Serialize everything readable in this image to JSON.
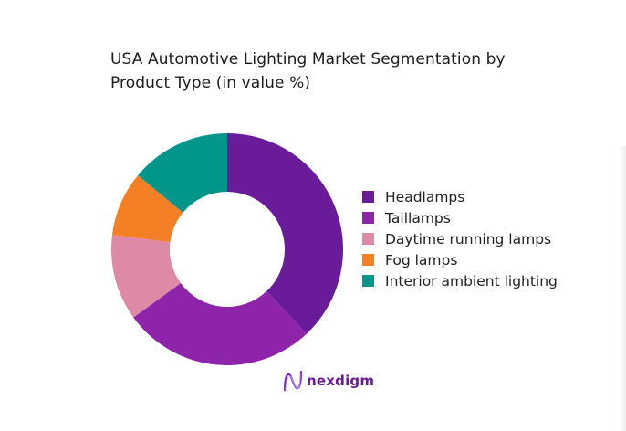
{
  "title": "USA Automotive Lighting Market Segmentation by Product Type (in value %)",
  "chart_data": {
    "type": "pie",
    "variant": "donut",
    "title": "USA Automotive Lighting Market Segmentation by Product Type (in value %)",
    "categories": [
      "Headlamps",
      "Taillamps",
      "Daytime running lamps",
      "Fog lamps",
      "Interior ambient lighting"
    ],
    "values": [
      38,
      27,
      12,
      9,
      14
    ],
    "colors": [
      "#6a1b9a",
      "#8e24aa",
      "#de8aa6",
      "#f47f25",
      "#00968a"
    ],
    "start_angle": "top, clockwise",
    "legend_position": "right",
    "data_labels": false
  },
  "legend": [
    {
      "label": "Headlamps",
      "color": "#6a1b9a"
    },
    {
      "label": "Taillamps",
      "color": "#8e24aa"
    },
    {
      "label": "Daytime running lamps",
      "color": "#de8aa6"
    },
    {
      "label": "Fog lamps",
      "color": "#f47f25"
    },
    {
      "label": "Interior ambient lighting",
      "color": "#00968a"
    }
  ],
  "branding": {
    "logo_text": "nexdigm",
    "logo_icon": "wave-n-icon"
  }
}
